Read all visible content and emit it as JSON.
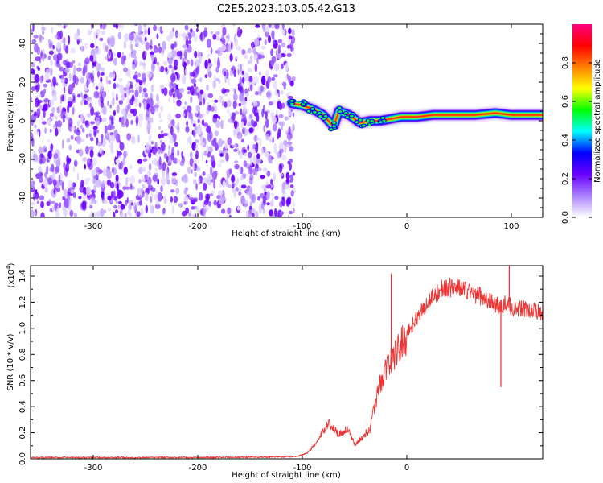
{
  "title": "C2E5.2023.103.05.42.G13",
  "chart_data": [
    {
      "type": "heatmap",
      "title": "C2E5.2023.103.05.42.G13",
      "xlabel": "Height of straight line (km)",
      "ylabel": "Frequency (Hz)",
      "xlim": [
        -360,
        130
      ],
      "ylim": [
        -50,
        50
      ],
      "x_ticks": [
        -300,
        -200,
        -100,
        0,
        100
      ],
      "y_ticks": [
        -40,
        -20,
        0,
        20,
        40
      ],
      "x_tick_labels": [
        "-300",
        "-200",
        "-100",
        "0",
        "100"
      ],
      "y_tick_labels": [
        "-40",
        "-20",
        "0",
        "20",
        "40"
      ],
      "noise_region": {
        "x": [
          -360,
          -108
        ],
        "y": [
          -50,
          50
        ]
      },
      "signal_track": [
        {
          "x": -110,
          "y": 9
        },
        {
          "x": -100,
          "y": 8
        },
        {
          "x": -90,
          "y": 6
        },
        {
          "x": -80,
          "y": 3
        },
        {
          "x": -70,
          "y": -3
        },
        {
          "x": -65,
          "y": 5
        },
        {
          "x": -55,
          "y": 3
        },
        {
          "x": -45,
          "y": -1
        },
        {
          "x": -35,
          "y": 0
        },
        {
          "x": -25,
          "y": 0
        },
        {
          "x": -15,
          "y": 1
        },
        {
          "x": -5,
          "y": 2
        },
        {
          "x": 10,
          "y": 2
        },
        {
          "x": 25,
          "y": 3
        },
        {
          "x": 45,
          "y": 3
        },
        {
          "x": 65,
          "y": 3
        },
        {
          "x": 85,
          "y": 4
        },
        {
          "x": 100,
          "y": 3
        },
        {
          "x": 115,
          "y": 3
        },
        {
          "x": 130,
          "y": 3
        }
      ],
      "colorbar": {
        "label": "Normalized spectral amplitude",
        "range": [
          0,
          1
        ],
        "ticks": [
          0.0,
          0.2,
          0.4,
          0.6,
          0.8
        ],
        "tick_labels": [
          "0.0",
          "0.2",
          "0.4",
          "0.6",
          "0.8"
        ],
        "colors": [
          "#ffffff",
          "#ab82ff",
          "#6a00ff",
          "#0000ff",
          "#00ffff",
          "#00ff00",
          "#ffff00",
          "#ff8000",
          "#ff0000",
          "#ff0080"
        ]
      },
      "colors": {
        "noise": "#6b00ff",
        "signal_core": "#ff1010"
      },
      "grid": false
    },
    {
      "type": "line",
      "xlabel": "Height of straight line (km)",
      "ylabel": "SNR (10 * v/v)",
      "scale_label": "(x10",
      "scale_exponent": "4",
      "scale_suffix": ")",
      "xlim": [
        -360,
        130
      ],
      "ylim": [
        0,
        1.48
      ],
      "x_ticks": [
        -300,
        -200,
        -100,
        0
      ],
      "y_ticks": [
        0.0,
        0.2,
        0.4,
        0.6,
        0.8,
        1.0,
        1.2,
        1.4
      ],
      "x_tick_labels": [
        "-300",
        "-200",
        "-100",
        "0"
      ],
      "y_tick_labels": [
        "0.0",
        "0.2",
        "0.4",
        "0.6",
        "0.8",
        "1.0",
        "1.2",
        "1.4"
      ],
      "series": [
        {
          "color": "#ee3333",
          "points": [
            {
              "x": -360,
              "y": 0.01
            },
            {
              "x": -300,
              "y": 0.01
            },
            {
              "x": -200,
              "y": 0.01
            },
            {
              "x": -120,
              "y": 0.015
            },
            {
              "x": -105,
              "y": 0.02
            },
            {
              "x": -95,
              "y": 0.05
            },
            {
              "x": -85,
              "y": 0.15
            },
            {
              "x": -75,
              "y": 0.3
            },
            {
              "x": -65,
              "y": 0.2
            },
            {
              "x": -57,
              "y": 0.25
            },
            {
              "x": -50,
              "y": 0.12
            },
            {
              "x": -42,
              "y": 0.18
            },
            {
              "x": -35,
              "y": 0.25
            },
            {
              "x": -28,
              "y": 0.55
            },
            {
              "x": -20,
              "y": 0.75
            },
            {
              "x": -12,
              "y": 0.85
            },
            {
              "x": -5,
              "y": 0.95
            },
            {
              "x": 5,
              "y": 1.05
            },
            {
              "x": 15,
              "y": 1.18
            },
            {
              "x": 25,
              "y": 1.28
            },
            {
              "x": 35,
              "y": 1.35
            },
            {
              "x": 50,
              "y": 1.35
            },
            {
              "x": 65,
              "y": 1.3
            },
            {
              "x": 78,
              "y": 1.25
            },
            {
              "x": 88,
              "y": 1.2
            },
            {
              "x": 95,
              "y": 1.22
            },
            {
              "x": 105,
              "y": 1.18
            },
            {
              "x": 115,
              "y": 1.18
            },
            {
              "x": 130,
              "y": 1.15
            }
          ],
          "spikes": [
            {
              "x": -15,
              "y": 1.42
            },
            {
              "x": 98,
              "y": 1.48
            },
            {
              "x": 90,
              "y": 0.55
            }
          ]
        }
      ],
      "grid": false
    }
  ]
}
